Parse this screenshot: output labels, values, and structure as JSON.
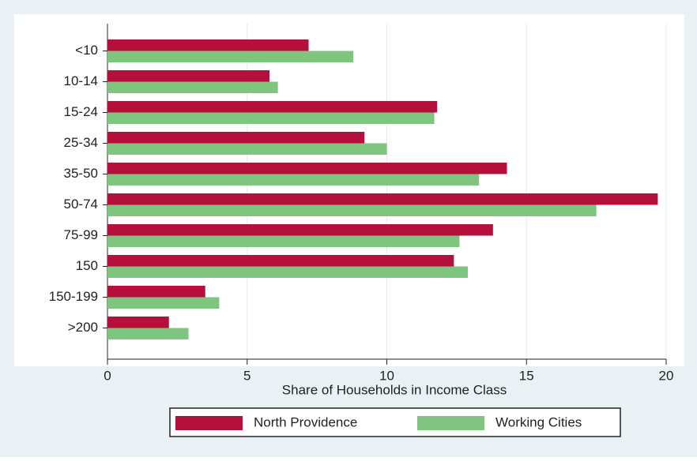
{
  "chart_data": {
    "type": "bar",
    "orientation": "horizontal",
    "xlabel": "Share of Households in Income Class",
    "categories": [
      "<10",
      "10-14",
      "15-24",
      "25-34",
      "35-50",
      "50-74",
      "75-99",
      "150",
      "150-199",
      ">200"
    ],
    "series": [
      {
        "name": "North Providence",
        "color": "#b5103c",
        "values": [
          7.2,
          5.8,
          11.8,
          9.2,
          14.3,
          19.7,
          13.8,
          12.4,
          3.5,
          2.2
        ]
      },
      {
        "name": "Working Cities",
        "color": "#7fc47f",
        "values": [
          8.8,
          6.1,
          11.7,
          10.0,
          13.3,
          17.5,
          12.6,
          12.9,
          4.0,
          2.9
        ]
      }
    ],
    "xlim": [
      0,
      20
    ],
    "xticks": [
      0,
      5,
      10,
      15,
      20
    ],
    "grid": true,
    "legend": "bottom"
  }
}
